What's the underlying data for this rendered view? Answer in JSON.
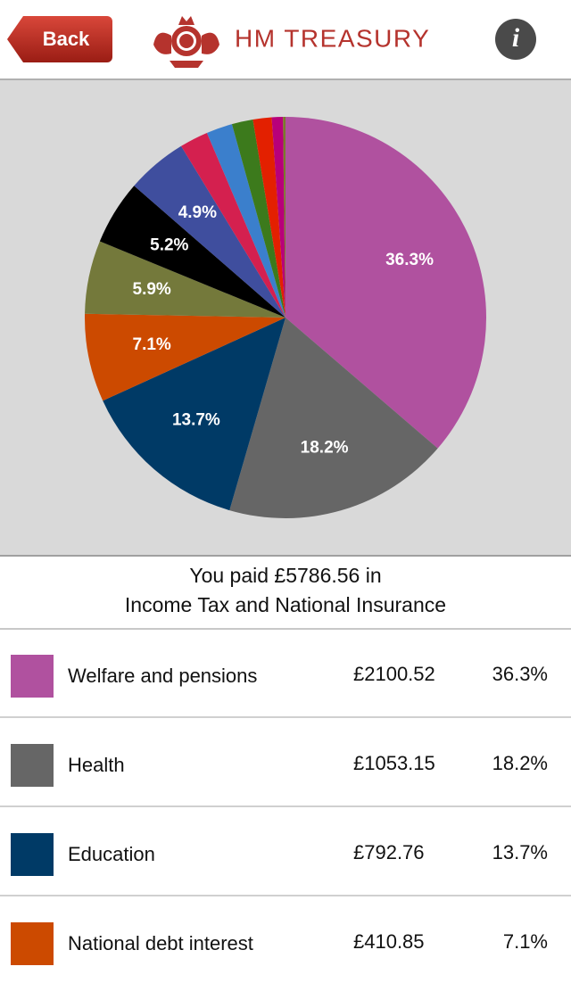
{
  "header": {
    "back": "Back",
    "title": "HM TREASURY",
    "info": "i"
  },
  "chart_data": {
    "type": "pie",
    "categories": [
      "Welfare and pensions",
      "Health",
      "Education",
      "National debt interest",
      null,
      null,
      null,
      null,
      null,
      null,
      null,
      null,
      null
    ],
    "values": [
      36.3,
      18.2,
      13.7,
      7.1,
      5.9,
      5.2,
      4.9,
      2.3,
      2.1,
      1.7,
      1.5,
      0.9,
      0.2
    ],
    "value_labels": [
      "36.3%",
      "18.2%",
      "13.7%",
      "7.1%",
      "5.9%",
      "5.2%",
      "4.9%",
      null,
      null,
      null,
      null,
      null,
      null
    ],
    "colors": [
      "#b0519f",
      "#666666",
      "#003a66",
      "#cc4a00",
      "#74793b",
      "#000000",
      "#3f4e9e",
      "#d4204f",
      "#3b7fcc",
      "#3c7a1c",
      "#e32000",
      "#b8007a",
      "#7a7a2a"
    ]
  },
  "summary": {
    "line1": "You paid £5786.56 in",
    "line2": "Income Tax and National Insurance"
  },
  "table": {
    "rows": [
      [
        "£2100.52"
      ],
      [
        "£1053.15"
      ],
      [
        "£792.76"
      ],
      [
        "£410.85"
      ]
    ]
  }
}
